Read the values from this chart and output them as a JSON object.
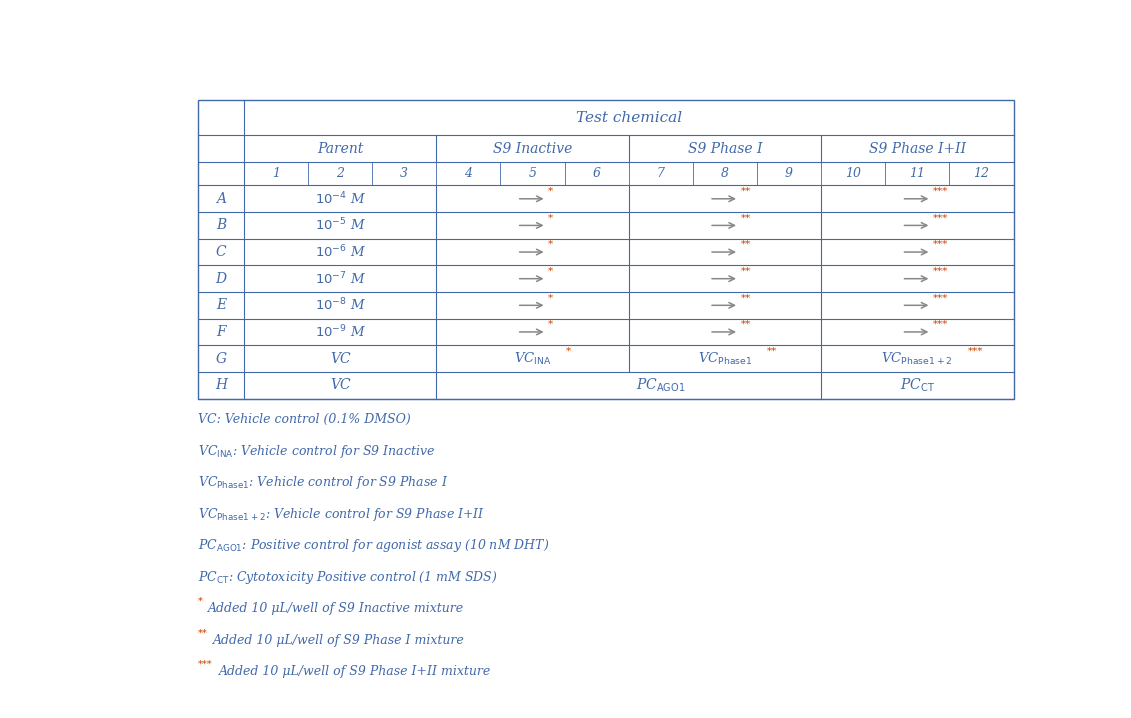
{
  "text_color": "#4169AA",
  "star_color": "#CC4400",
  "arrow_color": "#888888",
  "border_color": "#4169AA",
  "figsize": [
    11.31,
    7.18
  ],
  "dpi": 100,
  "row_labels": [
    "A",
    "B",
    "C",
    "D",
    "E",
    "F",
    "G",
    "H"
  ],
  "col_labels": [
    "1",
    "2",
    "3",
    "4",
    "5",
    "6",
    "7",
    "8",
    "9",
    "10",
    "11",
    "12"
  ],
  "concentrations": [
    "-4",
    "-5",
    "-6",
    "-7",
    "-8",
    "-9"
  ],
  "groups": [
    [
      "Parent",
      0,
      2
    ],
    [
      "S9 Inactive",
      3,
      5
    ],
    [
      "S9 Phase I",
      6,
      8
    ],
    [
      "S9 Phase I+II",
      9,
      11
    ]
  ]
}
